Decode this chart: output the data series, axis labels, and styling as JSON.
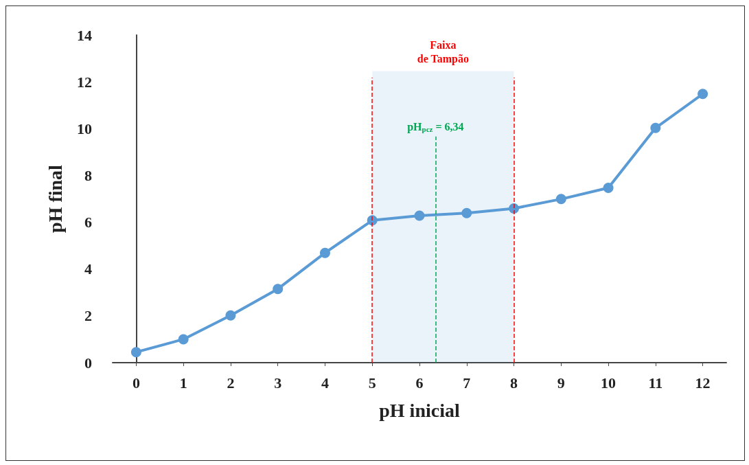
{
  "chart_data": {
    "type": "line",
    "xlabel": "pH inicial",
    "ylabel": "pH final",
    "x": [
      0,
      1,
      2,
      3,
      4,
      5,
      6,
      7,
      8,
      9,
      10,
      11,
      12
    ],
    "series": [
      {
        "color": "#5b9bd5",
        "values": [
          0.45,
          1.0,
          2.02,
          3.15,
          4.69,
          6.08,
          6.28,
          6.39,
          6.59,
          6.99,
          7.47,
          10.03,
          11.48
        ]
      }
    ],
    "xlim": [
      -0.5,
      12.5
    ],
    "xticks": [
      0,
      1,
      2,
      3,
      4,
      5,
      6,
      7,
      8,
      9,
      10,
      11,
      12
    ],
    "ylim": [
      0,
      14
    ],
    "yticks": [
      0,
      2,
      4,
      6,
      8,
      10,
      12,
      14
    ],
    "ref_lines": [
      {
        "axis": "x",
        "value": 5,
        "color": "#ff0000",
        "line_style": "dashed"
      },
      {
        "axis": "x",
        "value": 8,
        "color": "#ff0000",
        "line_style": "dashed"
      },
      {
        "axis": "x",
        "value": 6.34,
        "label": "pH$_{pcz}$ = 6,34",
        "color": "#00a651",
        "line_style": "dashed"
      }
    ],
    "bands": [
      {
        "axis": "x",
        "from": 5,
        "to": 8,
        "label": "Faixa\nde Tampão",
        "color": "#5b9bd5"
      }
    ],
    "grid": false,
    "marker": "circle",
    "line_style": "solid"
  }
}
